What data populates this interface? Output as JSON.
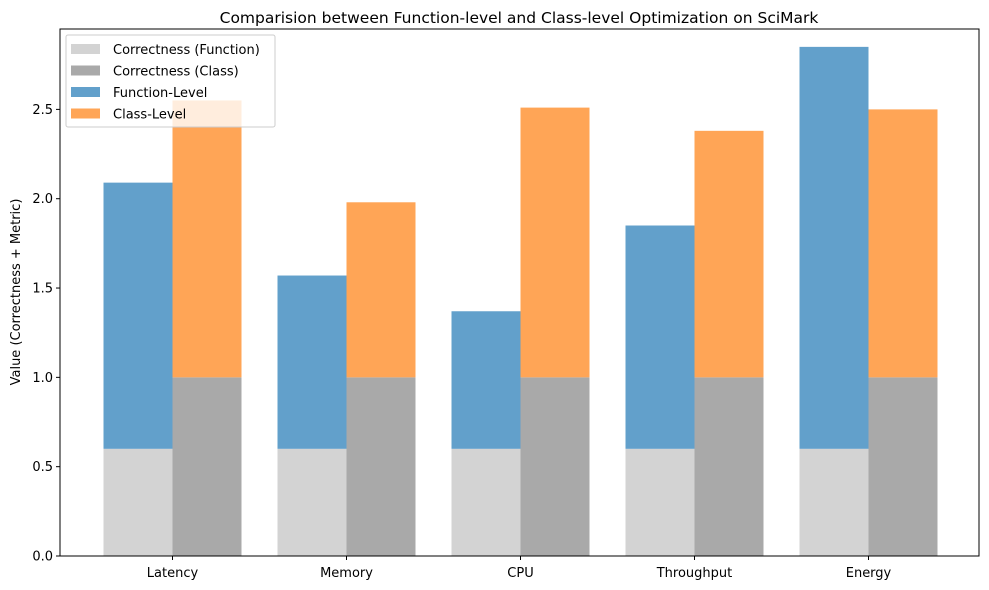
{
  "chart_data": {
    "type": "bar",
    "title": "Comparision between Function-level and Class-level Optimization on SciMark",
    "xlabel": "",
    "ylabel": "Value (Correctness + Metric)",
    "ylim": [
      0,
      2.95
    ],
    "yticks": [
      "0.0",
      "0.5",
      "1.0",
      "1.5",
      "2.0",
      "2.5"
    ],
    "categories": [
      "Latency",
      "Memory",
      "CPU",
      "Throughput",
      "Energy"
    ],
    "legend_position": "top-left",
    "grid": false,
    "series": [
      {
        "name": "Correctness (Function)",
        "group": "function",
        "color": "#d3d3d3",
        "base": [
          0,
          0,
          0,
          0,
          0
        ],
        "values": [
          0.6,
          0.6,
          0.6,
          0.6,
          0.6
        ]
      },
      {
        "name": "Correctness (Class)",
        "group": "class",
        "color": "#a9a9a9",
        "base": [
          0,
          0,
          0,
          0,
          0
        ],
        "values": [
          1.0,
          1.0,
          1.0,
          1.0,
          1.0
        ]
      },
      {
        "name": "Function-Level",
        "group": "function",
        "color": "#62a0cb",
        "base": [
          0.6,
          0.6,
          0.6,
          0.6,
          0.6
        ],
        "values": [
          1.49,
          0.97,
          0.77,
          1.25,
          2.25
        ]
      },
      {
        "name": "Class-Level",
        "group": "class",
        "color": "#ffa556",
        "base": [
          1.0,
          1.0,
          1.0,
          1.0,
          1.0
        ],
        "values": [
          1.55,
          0.98,
          1.51,
          1.38,
          1.5
        ]
      }
    ]
  }
}
